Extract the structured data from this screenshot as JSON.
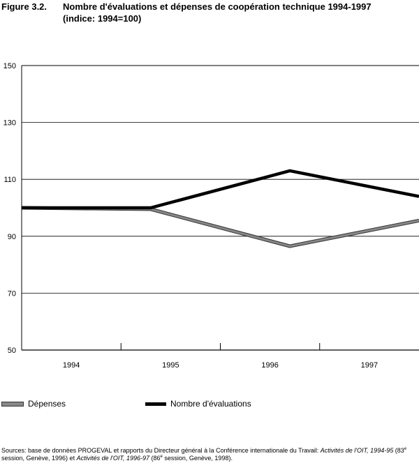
{
  "figure": {
    "number": "Figure 3.2.",
    "title": "Nombre d'évaluations et dépenses de coopération technique 1994-1997",
    "subtitle": "(indice: 1994=100)"
  },
  "chart_data": {
    "type": "line",
    "title": "Nombre d'évaluations et dépenses de coopération technique 1994-1997",
    "subtitle": "(indice: 1994=100)",
    "xlabel": "",
    "ylabel": "",
    "categories": [
      "1994",
      "1995",
      "1996",
      "1997"
    ],
    "x": [
      1994,
      1995,
      1996,
      1997
    ],
    "ylim": [
      50,
      150
    ],
    "yticks": [
      50,
      70,
      90,
      110,
      130,
      150
    ],
    "grid": "horizontal",
    "legend_position": "bottom",
    "series": [
      {
        "name": "Dépenses",
        "color": "#888888",
        "x": [
          1993.5,
          1994.8,
          1996.2,
          1997.5
        ],
        "values": [
          100,
          99.5,
          86.5,
          95.5
        ]
      },
      {
        "name": "Nombre d'évaluations",
        "color": "#000000",
        "x": [
          1993.5,
          1994.8,
          1996.2,
          1997.5
        ],
        "values": [
          100,
          100,
          113,
          104
        ]
      }
    ]
  },
  "sources": {
    "prefix": "Sources: base de données PROGEVAL et rapports du Directeur général à la Conférence internationale du Travail: ",
    "pub1": "Activités de l'OIT, 1994-95",
    "mid1a": " (83",
    "sup1": "e",
    "mid1b": " session, Genève, 1996) et ",
    "pub2": "Activités de l'OIT, 1996-97",
    "mid2a": " (86",
    "sup2": "e",
    "mid2b": " session, Genève, 1998)."
  }
}
